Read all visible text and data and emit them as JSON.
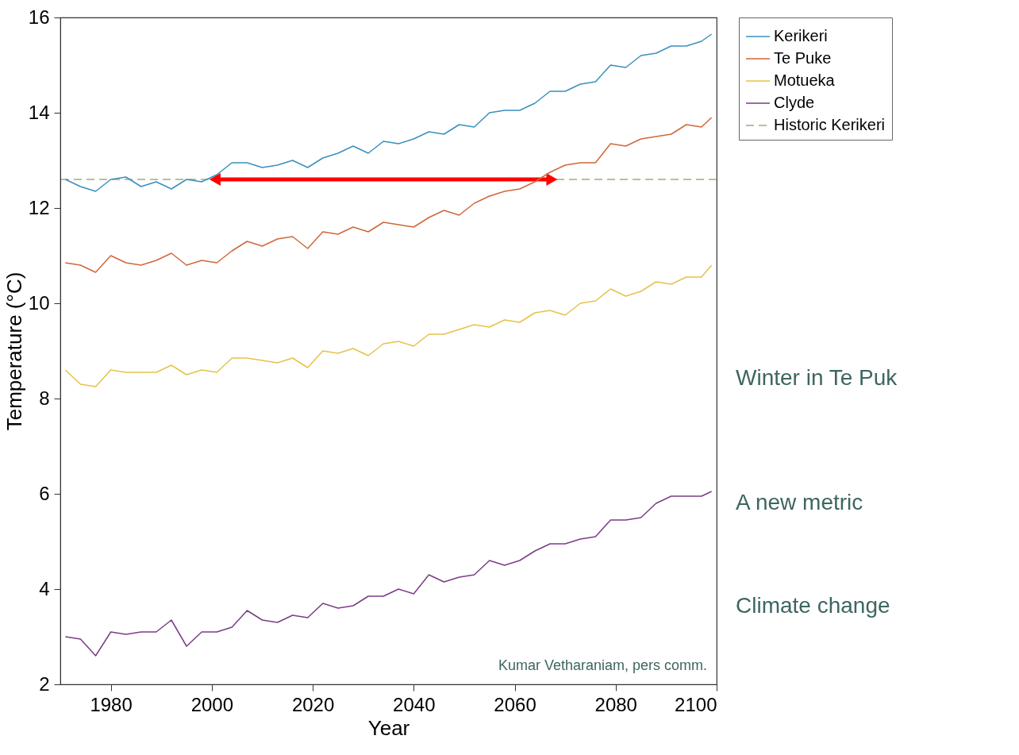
{
  "chart_data": {
    "type": "line",
    "xlabel": "Year",
    "ylabel": "Temperature (°C)",
    "x": [
      1971,
      1974,
      1977,
      1980,
      1983,
      1986,
      1989,
      1992,
      1995,
      1998,
      2001,
      2004,
      2007,
      2010,
      2013,
      2016,
      2019,
      2022,
      2025,
      2028,
      2031,
      2034,
      2037,
      2040,
      2043,
      2046,
      2049,
      2052,
      2055,
      2058,
      2061,
      2064,
      2067,
      2070,
      2073,
      2076,
      2079,
      2082,
      2085,
      2088,
      2091,
      2094,
      2097,
      2099
    ],
    "series": [
      {
        "name": "Kerikeri",
        "color": "#3a8fbf",
        "values": [
          12.6,
          12.45,
          12.35,
          12.6,
          12.65,
          12.45,
          12.55,
          12.4,
          12.6,
          12.55,
          12.7,
          12.95,
          12.95,
          12.85,
          12.9,
          13.0,
          12.85,
          13.05,
          13.15,
          13.3,
          13.15,
          13.4,
          13.35,
          13.45,
          13.6,
          13.55,
          13.75,
          13.7,
          14.0,
          14.05,
          14.05,
          14.2,
          14.45,
          14.45,
          14.6,
          14.65,
          15.0,
          14.95,
          15.2,
          15.25,
          15.4,
          15.4,
          15.5,
          15.65
        ]
      },
      {
        "name": "Te Puke",
        "color": "#d0673a",
        "values": [
          10.85,
          10.8,
          10.65,
          11.0,
          10.85,
          10.8,
          10.9,
          11.05,
          10.8,
          10.9,
          10.85,
          11.1,
          11.3,
          11.2,
          11.35,
          11.4,
          11.15,
          11.5,
          11.45,
          11.6,
          11.5,
          11.7,
          11.65,
          11.6,
          11.8,
          11.95,
          11.85,
          12.1,
          12.25,
          12.35,
          12.4,
          12.55,
          12.75,
          12.9,
          12.95,
          12.95,
          13.35,
          13.3,
          13.45,
          13.5,
          13.55,
          13.75,
          13.7,
          13.9
        ]
      },
      {
        "name": "Motueka",
        "color": "#e6c24a",
        "values": [
          8.6,
          8.3,
          8.25,
          8.6,
          8.55,
          8.55,
          8.55,
          8.7,
          8.5,
          8.6,
          8.55,
          8.85,
          8.85,
          8.8,
          8.75,
          8.85,
          8.65,
          9.0,
          8.95,
          9.05,
          8.9,
          9.15,
          9.2,
          9.1,
          9.35,
          9.35,
          9.45,
          9.55,
          9.5,
          9.65,
          9.6,
          9.8,
          9.85,
          9.75,
          10.0,
          10.05,
          10.3,
          10.15,
          10.25,
          10.45,
          10.4,
          10.55,
          10.55,
          10.8
        ]
      },
      {
        "name": "Clyde",
        "color": "#7a3d86",
        "values": [
          3.0,
          2.95,
          2.6,
          3.1,
          3.05,
          3.1,
          3.1,
          3.35,
          2.8,
          3.1,
          3.1,
          3.2,
          3.55,
          3.35,
          3.3,
          3.45,
          3.4,
          3.7,
          3.6,
          3.65,
          3.85,
          3.85,
          4.0,
          3.9,
          4.3,
          4.15,
          4.25,
          4.3,
          4.6,
          4.5,
          4.6,
          4.8,
          4.95,
          4.95,
          5.05,
          5.1,
          5.45,
          5.45,
          5.5,
          5.8,
          5.95,
          5.95,
          5.95,
          6.05
        ]
      }
    ],
    "ref_lines": [
      {
        "axis": "y",
        "value": 12.6,
        "label": "Historic Kerikeri",
        "color": "#9ab07f",
        "line_style": "dashed"
      }
    ],
    "xlim": [
      1970,
      2100
    ],
    "ylim": [
      2,
      16
    ],
    "xticks": [
      1980,
      2000,
      2020,
      2040,
      2060,
      2080,
      2100
    ],
    "yticks": [
      2,
      4,
      6,
      8,
      10,
      12,
      14,
      16
    ],
    "grid": false,
    "legend": "top right",
    "line_style": "solid",
    "marker": "none",
    "annotations": [
      "Kumar Vetharaniam,  pers comm.",
      "Winter in Te Puk",
      "A new metric",
      "Climate change"
    ]
  }
}
